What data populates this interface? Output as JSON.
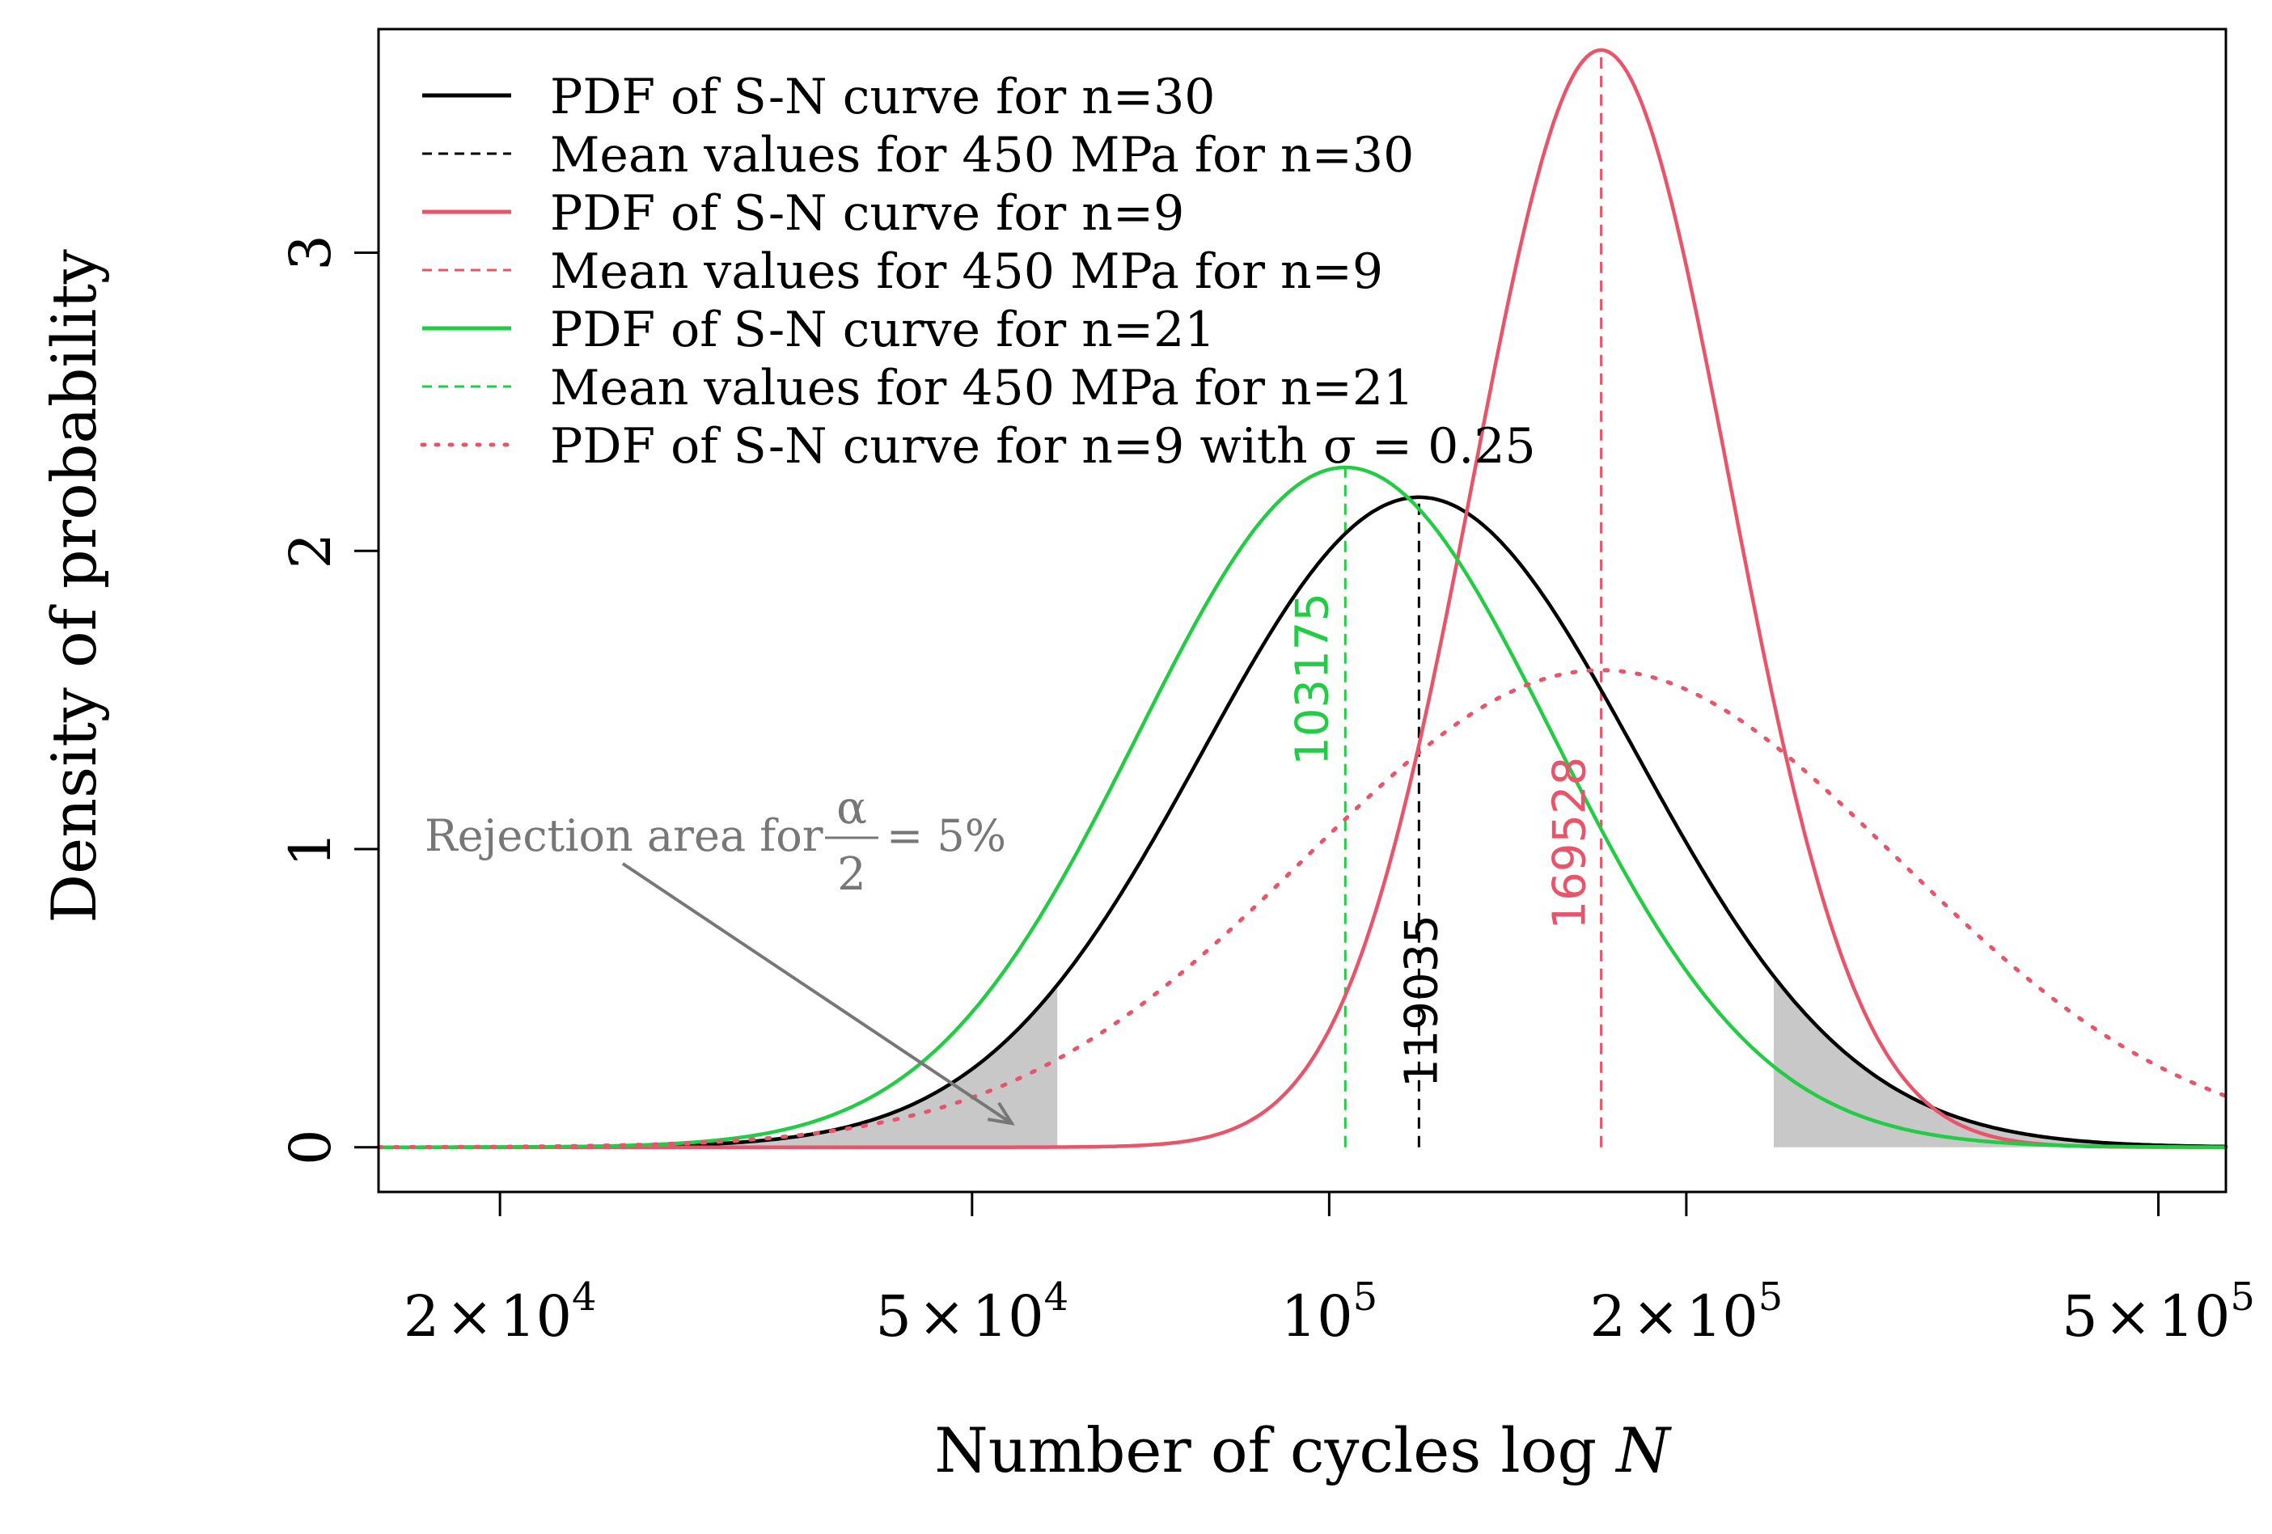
{
  "chart_data": {
    "type": "line",
    "title": "",
    "xlabel": "Number of cycles log ",
    "xlabel_italic": "N",
    "ylabel": "Density of probability",
    "x_scale": "log10",
    "xlim": [
      15800,
      570000
    ],
    "ylim": [
      -0.15,
      3.75
    ],
    "grid": false,
    "legend_position": "top-left",
    "x_ticks": [
      {
        "value": 20000,
        "mant": "2",
        "times": "×",
        "base": "10",
        "exp": "4"
      },
      {
        "value": 50000,
        "mant": "5",
        "times": "×",
        "base": "10",
        "exp": "4"
      },
      {
        "value": 100000,
        "mant": "",
        "times": "",
        "base": "10",
        "exp": "5"
      },
      {
        "value": 200000,
        "mant": "2",
        "times": "×",
        "base": "10",
        "exp": "5"
      },
      {
        "value": 500000,
        "mant": "5",
        "times": "×",
        "base": "10",
        "exp": "5"
      }
    ],
    "y_ticks": [
      {
        "value": 0,
        "label": "0"
      },
      {
        "value": 1,
        "label": "1"
      },
      {
        "value": 2,
        "label": "2"
      },
      {
        "value": 3,
        "label": "3"
      }
    ],
    "series": [
      {
        "name": "PDF of S-N curve for n=30",
        "color": "#000000",
        "style": "solid",
        "mean": 119035,
        "peak": 2.18
      },
      {
        "name": "PDF of S-N curve  for n=9",
        "color": "#e8556b",
        "style": "solid",
        "mean": 169528,
        "peak": 3.68
      },
      {
        "name": "PDF of S-N curve  for n=21",
        "color": "#22cc44",
        "style": "solid",
        "mean": 103175,
        "peak": 2.28
      },
      {
        "name": "PDF of S-N curve  for n=9 with σ = 0.25",
        "color": "#e8556b",
        "style": "dotted",
        "mean": 169528,
        "peak": 1.6
      }
    ],
    "mean_lines": [
      {
        "name": "Mean values for 450 MPa for n=30",
        "color": "#000000",
        "value": 119035,
        "label": "119035"
      },
      {
        "name": "Mean values for 450 MPa for n=9",
        "color": "#e8556b",
        "value": 169528,
        "label": "169528"
      },
      {
        "name": "Mean values for 450 MPa for n=21",
        "color": "#22cc44",
        "value": 103175,
        "label": "103175"
      }
    ],
    "rejection_regions": [
      {
        "from": 15800,
        "to": 59000
      },
      {
        "to": 570000,
        "from": 237000
      }
    ],
    "legend": [
      {
        "label": "PDF of S-N curve for n=30",
        "color": "#000000",
        "style": "solid"
      },
      {
        "label": "Mean values for 450 MPa for n=30",
        "color": "#000000",
        "style": "dashed"
      },
      {
        "label": "PDF of S-N curve  for n=9",
        "color": "#e8556b",
        "style": "solid"
      },
      {
        "label": "Mean values for 450 MPa for n=9",
        "color": "#e8556b",
        "style": "dashed"
      },
      {
        "label": "PDF of S-N curve  for n=21",
        "color": "#22cc44",
        "style": "solid"
      },
      {
        "label": "Mean values for 450 MPa for n=21",
        "color": "#22cc44",
        "style": "dashed"
      },
      {
        "label": "PDF of S-N curve  for n=9 with σ = 0.25",
        "color": "#e8556b",
        "style": "dotted"
      }
    ],
    "annotation": {
      "text": "Rejection area for ",
      "numerator": "α",
      "denominator": "2",
      "suffix": "= 5%",
      "color": "#777777",
      "points_to": {
        "x": 54000,
        "y": 0.08
      }
    }
  }
}
